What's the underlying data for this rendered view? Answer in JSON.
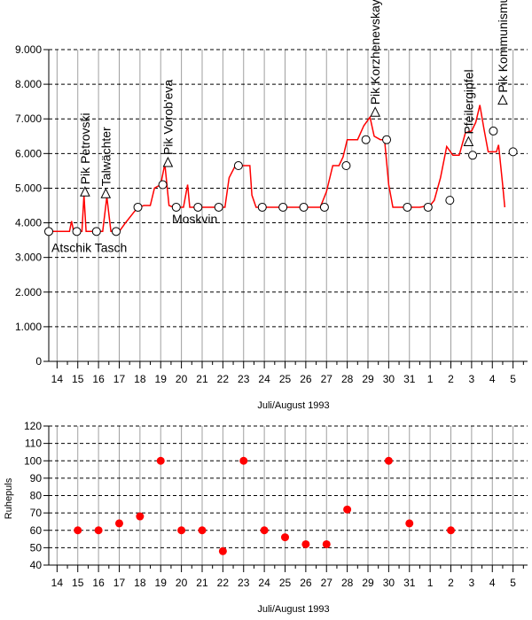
{
  "chart_data": [
    {
      "type": "line",
      "title": "",
      "xlabel": "Juli/August 1993",
      "ylabel": "",
      "ylim": [
        0,
        9000
      ],
      "y_ticks": [
        "0",
        "1.000",
        "2.000",
        "3.000",
        "4.000",
        "5.000",
        "6.000",
        "7.000",
        "8.000",
        "9.000"
      ],
      "y_tick_values": [
        0,
        1000,
        2000,
        3000,
        4000,
        5000,
        6000,
        7000,
        8000,
        9000
      ],
      "x_ticks": [
        "14",
        "15",
        "16",
        "17",
        "18",
        "19",
        "20",
        "21",
        "22",
        "23",
        "24",
        "25",
        "26",
        "27",
        "28",
        "29",
        "30",
        "31",
        "1",
        "2",
        "3",
        "4",
        "5"
      ],
      "x_range": [
        13.6,
        36.7
      ],
      "grid": "dashed horizontal, solid vertical",
      "colors": {
        "line": "#ff0000",
        "grid_h": "#000000",
        "grid_v": "#a0a0a0"
      },
      "series": [
        {
          "values": [
            [
              13.6,
              3750
            ],
            [
              14.0,
              3750
            ],
            [
              14.6,
              3750
            ],
            [
              14.7,
              4050
            ],
            [
              14.8,
              3750
            ],
            [
              15.0,
              3750
            ],
            [
              15.2,
              3750
            ],
            [
              15.3,
              4800
            ],
            [
              15.4,
              3750
            ],
            [
              15.8,
              3750
            ],
            [
              16.0,
              3750
            ],
            [
              16.2,
              3750
            ],
            [
              16.4,
              4750
            ],
            [
              16.6,
              3750
            ],
            [
              17.0,
              3750
            ],
            [
              17.3,
              4000
            ],
            [
              17.7,
              4300
            ],
            [
              17.9,
              4450
            ],
            [
              18.2,
              4500
            ],
            [
              18.5,
              4500
            ],
            [
              18.7,
              5000
            ],
            [
              19.0,
              5100
            ],
            [
              19.2,
              5700
            ],
            [
              19.4,
              4500
            ],
            [
              19.6,
              4450
            ],
            [
              20.1,
              4450
            ],
            [
              20.3,
              5100
            ],
            [
              20.4,
              4450
            ],
            [
              20.7,
              4450
            ],
            [
              21.0,
              4450
            ],
            [
              21.5,
              4450
            ],
            [
              21.8,
              4450
            ],
            [
              22.1,
              4450
            ],
            [
              22.3,
              5300
            ],
            [
              22.6,
              5650
            ],
            [
              23.0,
              5650
            ],
            [
              23.3,
              5650
            ],
            [
              23.4,
              4800
            ],
            [
              23.6,
              4450
            ],
            [
              23.9,
              4450
            ],
            [
              24.5,
              4450
            ],
            [
              25.0,
              4450
            ],
            [
              25.5,
              4450
            ],
            [
              26.0,
              4450
            ],
            [
              26.4,
              4450
            ],
            [
              26.7,
              4450
            ],
            [
              27.0,
              4900
            ],
            [
              27.3,
              5650
            ],
            [
              27.6,
              5650
            ],
            [
              27.8,
              5900
            ],
            [
              28.0,
              6400
            ],
            [
              28.5,
              6400
            ],
            [
              28.8,
              6800
            ],
            [
              29.1,
              7050
            ],
            [
              29.3,
              6500
            ],
            [
              29.6,
              6400
            ],
            [
              29.8,
              6400
            ],
            [
              30.0,
              5100
            ],
            [
              30.2,
              4450
            ],
            [
              30.5,
              4450
            ],
            [
              31.0,
              4450
            ],
            [
              31.5,
              4450
            ],
            [
              32.0,
              4500
            ],
            [
              32.2,
              4650
            ],
            [
              32.5,
              5300
            ],
            [
              32.8,
              6200
            ],
            [
              33.1,
              5950
            ],
            [
              33.4,
              5950
            ],
            [
              33.7,
              6600
            ],
            [
              34.0,
              6650
            ],
            [
              34.2,
              6900
            ],
            [
              34.4,
              7400
            ],
            [
              34.6,
              6700
            ],
            [
              34.8,
              6050
            ],
            [
              35.2,
              6050
            ],
            [
              35.3,
              6250
            ],
            [
              35.5,
              5100
            ],
            [
              35.6,
              4450
            ]
          ]
        }
      ],
      "markers": {
        "circles": [
          [
            13.6,
            3750
          ],
          [
            14.95,
            3750
          ],
          [
            15.9,
            3750
          ],
          [
            16.85,
            3750
          ],
          [
            17.9,
            4450
          ],
          [
            19.1,
            5100
          ],
          [
            19.75,
            4450
          ],
          [
            20.8,
            4450
          ],
          [
            21.8,
            4450
          ],
          [
            22.75,
            5650
          ],
          [
            23.9,
            4450
          ],
          [
            24.9,
            4450
          ],
          [
            25.9,
            4450
          ],
          [
            26.9,
            4450
          ],
          [
            27.95,
            5650
          ],
          [
            28.9,
            6400
          ],
          [
            29.9,
            6400
          ],
          [
            30.9,
            4450
          ],
          [
            31.9,
            4450
          ],
          [
            32.95,
            4650
          ],
          [
            34.05,
            5950
          ],
          [
            35.05,
            6650
          ],
          [
            36.0,
            6050
          ]
        ],
        "triangles": [
          [
            15.35,
            4800
          ],
          [
            16.35,
            4750
          ],
          [
            19.35,
            5650
          ],
          [
            29.35,
            7100
          ],
          [
            33.85,
            6250
          ],
          [
            35.5,
            7450
          ]
        ]
      },
      "annotations": [
        {
          "text": "Atschik Tasch",
          "x": 14.0,
          "y": 3750
        },
        {
          "text": "Pik Petrovski",
          "x": 15.35,
          "y": 4800
        },
        {
          "text": "Talwächter",
          "x": 16.35,
          "y": 4750
        },
        {
          "text": "Pik Vorob'eva",
          "x": 19.35,
          "y": 5650
        },
        {
          "text": "Moskvin",
          "x": 20.7,
          "y": 4450
        },
        {
          "text": "Pik Korzhenevskaya",
          "x": 29.35,
          "y": 7100
        },
        {
          "text": "Pfeilergipfel",
          "x": 33.85,
          "y": 6250
        },
        {
          "text": "Pik Kommunismus",
          "x": 35.5,
          "y": 7450
        }
      ]
    },
    {
      "type": "scatter",
      "title": "",
      "xlabel": "Juli/August 1993",
      "ylabel": "Ruhepuls",
      "ylim": [
        40,
        120
      ],
      "y_ticks": [
        "40",
        "50",
        "60",
        "70",
        "80",
        "90",
        "100",
        "110",
        "120"
      ],
      "y_tick_values": [
        40,
        50,
        60,
        70,
        80,
        90,
        100,
        110,
        120
      ],
      "x_ticks": [
        "14",
        "15",
        "16",
        "17",
        "18",
        "19",
        "20",
        "21",
        "22",
        "23",
        "24",
        "25",
        "26",
        "27",
        "28",
        "29",
        "30",
        "31",
        "1",
        "2",
        "3",
        "4",
        "5"
      ],
      "x_range": [
        13.6,
        36.7
      ],
      "grid": "dashed horizontal, solid vertical",
      "colors": {
        "points": "#ff0000",
        "grid_h": "#000000",
        "grid_v": "#a0a0a0"
      },
      "series": [
        {
          "values": [
            [
              15,
              60
            ],
            [
              16,
              60
            ],
            [
              17,
              64
            ],
            [
              18,
              68
            ],
            [
              19,
              100
            ],
            [
              20,
              60
            ],
            [
              21,
              60
            ],
            [
              22,
              48
            ],
            [
              23,
              100
            ],
            [
              24,
              60
            ],
            [
              25,
              56
            ],
            [
              26,
              52
            ],
            [
              27,
              52
            ],
            [
              28,
              72
            ],
            [
              30,
              100
            ],
            [
              31,
              64
            ],
            [
              33,
              60
            ]
          ]
        }
      ]
    }
  ]
}
